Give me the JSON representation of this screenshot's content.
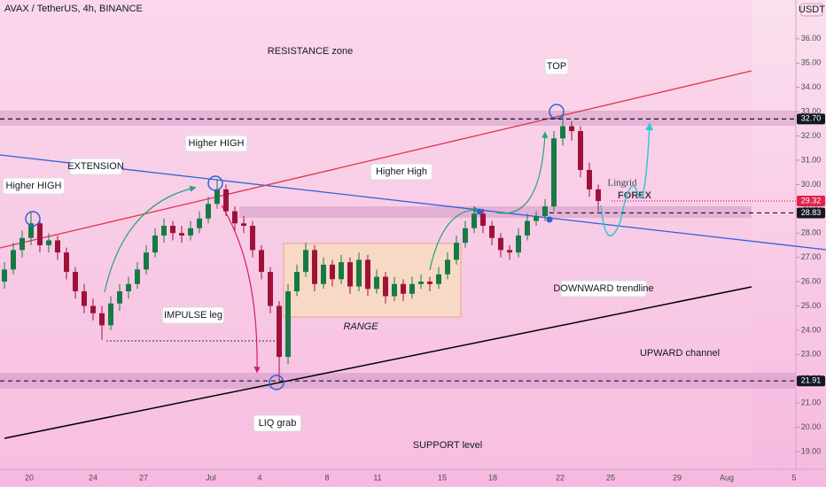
{
  "chart_data": {
    "type": "candlestick",
    "title": "AVAX / TetherUS, 4h, BINANCE",
    "y_axis_label": "USDT",
    "up_color": "#177a45",
    "down_color": "#9e1239",
    "ylim": [
      18.27,
      37.6
    ],
    "yticks": [
      {
        "value": 19,
        "label": "19.00"
      },
      {
        "value": 20,
        "label": "20.00"
      },
      {
        "value": 21,
        "label": "21.00"
      },
      {
        "value": 22,
        "label": "22.00"
      },
      {
        "value": 23,
        "label": "23.00"
      },
      {
        "value": 24,
        "label": "24.00"
      },
      {
        "value": 25,
        "label": "25.00"
      },
      {
        "value": 26,
        "label": "26.00"
      },
      {
        "value": 27,
        "label": "27.00"
      },
      {
        "value": 28,
        "label": "28.00"
      },
      {
        "value": 29,
        "label": "29.00"
      },
      {
        "value": 30,
        "label": "30.00"
      },
      {
        "value": 31,
        "label": "31.00"
      },
      {
        "value": 32,
        "label": "32.00"
      },
      {
        "value": 33,
        "label": "33.00"
      },
      {
        "value": 34,
        "label": "34.00"
      },
      {
        "value": 35,
        "label": "35.00"
      },
      {
        "value": 36,
        "label": "36.00"
      }
    ],
    "xticks": [
      "20",
      "24",
      "27",
      "Jul",
      "4",
      "8",
      "11",
      "15",
      "18",
      "22",
      "25",
      "29",
      "Aug",
      "5"
    ],
    "price_labels": [
      {
        "value": 32.7,
        "label": "32.70",
        "color": "#131722"
      },
      {
        "value": 29.32,
        "label": "29.32",
        "color": "#e0224a"
      },
      {
        "value": 28.83,
        "label": "28.83",
        "color": "#131722"
      },
      {
        "value": 21.91,
        "label": "21.91",
        "color": "#131722"
      }
    ],
    "candles": [
      [
        26.0,
        26.8,
        25.7,
        26.5
      ],
      [
        26.5,
        27.6,
        26.3,
        27.3
      ],
      [
        27.3,
        28.1,
        27.0,
        27.8
      ],
      [
        27.8,
        28.9,
        27.5,
        28.4
      ],
      [
        28.4,
        28.6,
        27.2,
        27.5
      ],
      [
        27.5,
        28.0,
        27.2,
        27.7
      ],
      [
        27.7,
        27.9,
        26.9,
        27.2
      ],
      [
        27.2,
        27.4,
        26.1,
        26.4
      ],
      [
        26.4,
        26.6,
        25.3,
        25.6
      ],
      [
        25.6,
        25.9,
        24.7,
        25.0
      ],
      [
        25.0,
        25.3,
        24.4,
        24.7
      ],
      [
        24.7,
        25.0,
        23.6,
        24.2
      ],
      [
        24.2,
        25.4,
        24.0,
        25.1
      ],
      [
        25.1,
        25.9,
        24.8,
        25.6
      ],
      [
        25.6,
        26.2,
        25.3,
        25.9
      ],
      [
        25.9,
        26.8,
        25.7,
        26.5
      ],
      [
        26.5,
        27.5,
        26.3,
        27.2
      ],
      [
        27.2,
        28.2,
        27.0,
        27.9
      ],
      [
        27.9,
        28.6,
        27.6,
        28.3
      ],
      [
        28.3,
        28.5,
        27.7,
        28.0
      ],
      [
        28.0,
        28.3,
        27.6,
        27.9
      ],
      [
        27.9,
        28.5,
        27.7,
        28.2
      ],
      [
        28.2,
        28.9,
        28.0,
        28.6
      ],
      [
        28.6,
        29.5,
        28.4,
        29.2
      ],
      [
        29.2,
        30.2,
        29.0,
        29.8
      ],
      [
        29.8,
        30.0,
        28.7,
        28.9
      ],
      [
        28.9,
        29.1,
        28.1,
        28.4
      ],
      [
        28.4,
        28.7,
        28.0,
        28.3
      ],
      [
        28.3,
        28.5,
        27.0,
        27.3
      ],
      [
        27.3,
        27.5,
        26.1,
        26.4
      ],
      [
        26.4,
        26.6,
        24.7,
        25.0
      ],
      [
        25.0,
        25.2,
        21.91,
        22.9
      ],
      [
        22.9,
        25.9,
        22.6,
        25.6
      ],
      [
        25.6,
        26.7,
        25.4,
        26.4
      ],
      [
        26.4,
        27.6,
        26.2,
        27.3
      ],
      [
        27.3,
        27.5,
        25.6,
        25.9
      ],
      [
        25.9,
        27.0,
        25.7,
        26.7
      ],
      [
        26.7,
        26.9,
        25.8,
        26.1
      ],
      [
        26.1,
        27.1,
        25.9,
        26.8
      ],
      [
        26.8,
        27.0,
        25.5,
        25.8
      ],
      [
        25.8,
        27.2,
        25.6,
        26.9
      ],
      [
        26.9,
        27.1,
        25.4,
        25.7
      ],
      [
        25.7,
        26.5,
        25.5,
        26.2
      ],
      [
        26.2,
        26.4,
        25.1,
        25.4
      ],
      [
        25.4,
        26.2,
        25.2,
        25.9
      ],
      [
        25.9,
        26.1,
        25.2,
        25.5
      ],
      [
        25.5,
        26.2,
        25.3,
        25.9
      ],
      [
        25.9,
        26.3,
        25.7,
        26.0
      ],
      [
        26.0,
        26.2,
        25.6,
        25.9
      ],
      [
        25.9,
        26.6,
        25.7,
        26.3
      ],
      [
        26.3,
        27.2,
        26.1,
        26.9
      ],
      [
        26.9,
        27.9,
        26.7,
        27.6
      ],
      [
        27.6,
        28.5,
        27.4,
        28.2
      ],
      [
        28.2,
        29.1,
        28.0,
        28.8
      ],
      [
        28.8,
        29.0,
        28.0,
        28.3
      ],
      [
        28.3,
        28.5,
        27.5,
        27.8
      ],
      [
        27.8,
        28.0,
        27.0,
        27.3
      ],
      [
        27.3,
        27.5,
        26.9,
        27.2
      ],
      [
        27.2,
        28.2,
        27.0,
        27.9
      ],
      [
        27.9,
        28.8,
        27.7,
        28.5
      ],
      [
        28.5,
        28.9,
        28.3,
        28.7
      ],
      [
        28.7,
        29.4,
        28.5,
        29.1
      ],
      [
        29.1,
        32.2,
        28.9,
        31.9
      ],
      [
        31.9,
        32.9,
        31.6,
        32.4
      ],
      [
        32.4,
        32.6,
        31.8,
        32.2
      ],
      [
        32.2,
        32.4,
        30.3,
        30.6
      ],
      [
        30.6,
        30.9,
        29.5,
        29.8
      ],
      [
        29.8,
        30.0,
        28.9,
        29.32
      ]
    ],
    "annotations": [
      "RESISTANCE zone",
      "TOP",
      "Higher HIGH",
      "EXTENSION",
      "Higher HIGH",
      "Higher High",
      "IMPULSE leg",
      "RANGE",
      "LIQ grab",
      "SUPPORT level",
      "UPWARD channel",
      "DOWNWARD trendline"
    ],
    "watermark": [
      "Lingrid",
      "FOREX"
    ]
  }
}
